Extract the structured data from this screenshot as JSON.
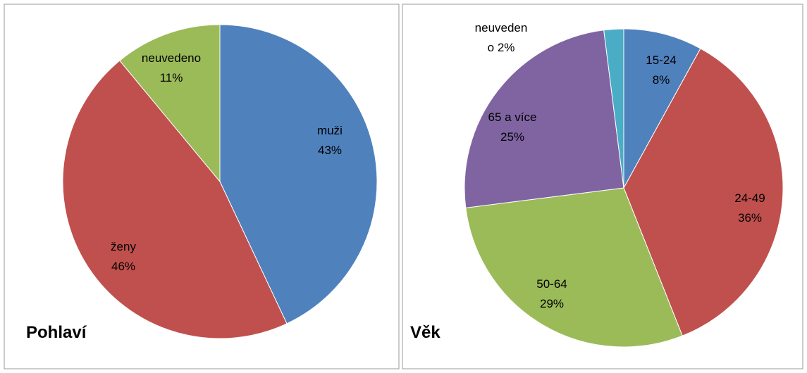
{
  "chart_data": [
    {
      "type": "pie",
      "title": "Pohlaví",
      "categories": [
        "muži",
        "ženy",
        "neuvedeno"
      ],
      "values": [
        43,
        46,
        11
      ],
      "value_labels": [
        "43%",
        "46%",
        "11%"
      ],
      "colors": [
        "#4f81bd",
        "#c0504d",
        "#9bbb59"
      ]
    },
    {
      "type": "pie",
      "title": "Věk",
      "categories": [
        "15-24",
        "24-49",
        "50-64",
        "65 a více",
        "neuvedeno"
      ],
      "values": [
        8,
        36,
        29,
        25,
        2
      ],
      "value_labels": [
        "8%",
        "36%",
        "29%",
        "25%",
        "2%"
      ],
      "colors": [
        "#4f81bd",
        "#c0504d",
        "#9bbb59",
        "#8064a2",
        "#4bacc6"
      ]
    }
  ]
}
